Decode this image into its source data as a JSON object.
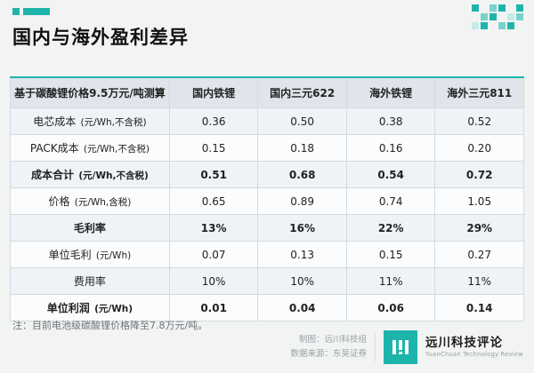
{
  "page": {
    "title": "国内与海外盈利差异"
  },
  "colors": {
    "accent": "#1db5ab",
    "header_bg": "#dfe5eb",
    "row_alt_bg": "#eff2f6"
  },
  "table": {
    "header": [
      "基于碳酸锂价格9.5万元/吨测算",
      "国内铁锂",
      "国内三元622",
      "海外铁锂",
      "海外三元811"
    ],
    "rows": [
      {
        "label": "电芯成本",
        "unit": "(元/Wh,不含税)",
        "bold": false,
        "values": [
          "0.36",
          "0.50",
          "0.38",
          "0.52"
        ]
      },
      {
        "label": "PACK成本",
        "unit": "(元/Wh,不含税)",
        "bold": false,
        "values": [
          "0.15",
          "0.18",
          "0.16",
          "0.20"
        ]
      },
      {
        "label": "成本合计",
        "unit": "(元/Wh,不含税)",
        "bold": true,
        "values": [
          "0.51",
          "0.68",
          "0.54",
          "0.72"
        ]
      },
      {
        "label": "价格",
        "unit": "(元/Wh,含税)",
        "bold": false,
        "values": [
          "0.65",
          "0.89",
          "0.74",
          "1.05"
        ]
      },
      {
        "label": "毛利率",
        "unit": "",
        "bold": true,
        "values": [
          "13%",
          "16%",
          "22%",
          "29%"
        ]
      },
      {
        "label": "单位毛利",
        "unit": "(元/Wh)",
        "bold": false,
        "values": [
          "0.07",
          "0.13",
          "0.15",
          "0.27"
        ]
      },
      {
        "label": "费用率",
        "unit": "",
        "bold": false,
        "values": [
          "10%",
          "10%",
          "11%",
          "11%"
        ]
      },
      {
        "label": "单位利润",
        "unit": "(元/Wh)",
        "bold": true,
        "values": [
          "0.01",
          "0.04",
          "0.06",
          "0.14"
        ]
      }
    ]
  },
  "footer": {
    "note": "注：目前电池级碳酸锂价格降至7.8万元/吨。",
    "credit_maker": "制图：远川科技组",
    "credit_source": "数据来源：东吴证券",
    "brand_cn": "远川科技评论",
    "brand_en": "YuanChuan Technology Review"
  },
  "chart_data": {
    "type": "table",
    "title": "国内与海外盈利差异",
    "note": "基于碳酸锂价格9.5万元/吨测算",
    "columns": [
      "国内铁锂",
      "国内三元622",
      "海外铁锂",
      "海外三元811"
    ],
    "rows": [
      {
        "metric": "电芯成本(元/Wh,不含税)",
        "values": [
          0.36,
          0.5,
          0.38,
          0.52
        ]
      },
      {
        "metric": "PACK成本(元/Wh,不含税)",
        "values": [
          0.15,
          0.18,
          0.16,
          0.2
        ]
      },
      {
        "metric": "成本合计(元/Wh,不含税)",
        "values": [
          0.51,
          0.68,
          0.54,
          0.72
        ]
      },
      {
        "metric": "价格(元/Wh,含税)",
        "values": [
          0.65,
          0.89,
          0.74,
          1.05
        ]
      },
      {
        "metric": "毛利率",
        "values": [
          "13%",
          "16%",
          "22%",
          "29%"
        ]
      },
      {
        "metric": "单位毛利(元/Wh)",
        "values": [
          0.07,
          0.13,
          0.15,
          0.27
        ]
      },
      {
        "metric": "费用率",
        "values": [
          "10%",
          "10%",
          "11%",
          "11%"
        ]
      },
      {
        "metric": "单位利润(元/Wh)",
        "values": [
          0.01,
          0.04,
          0.06,
          0.14
        ]
      }
    ],
    "footnote": "注：目前电池级碳酸锂价格降至7.8万元/吨。"
  }
}
